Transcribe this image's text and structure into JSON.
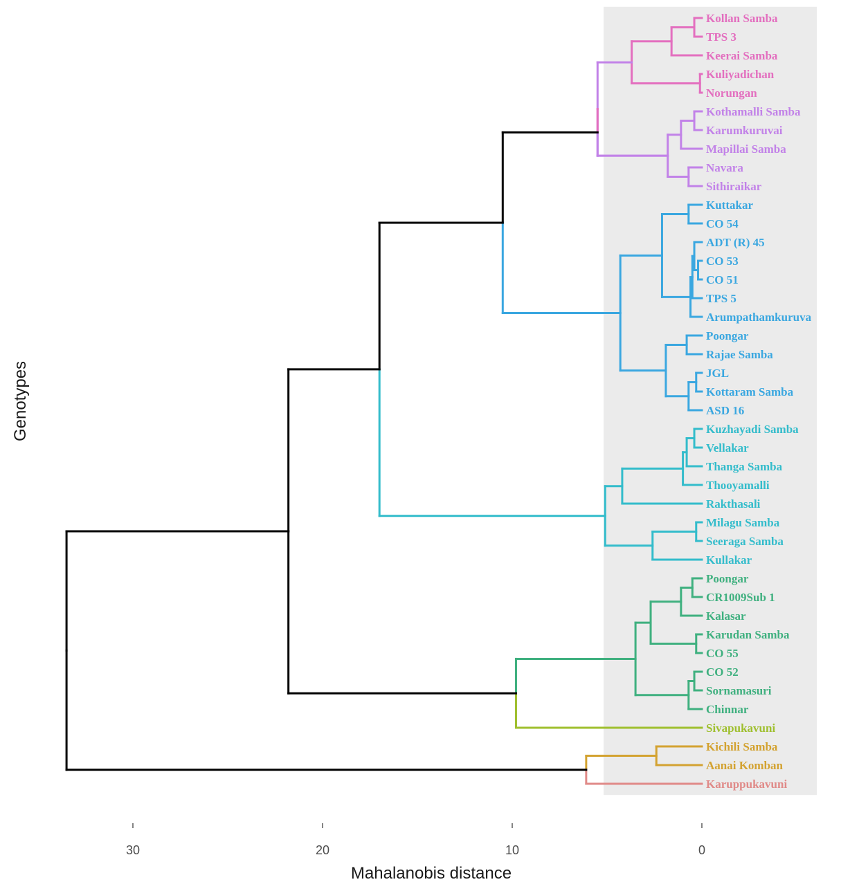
{
  "chart_data": {
    "type": "dendrogram",
    "xlabel": "Mahalanobis distance",
    "ylabel": "Genotypes",
    "x_ticks": [
      30,
      20,
      10,
      0
    ],
    "x_range": [
      33.5,
      -6
    ],
    "leaves": [
      {
        "label": "Kollan Samba",
        "cluster": 0
      },
      {
        "label": "TPS 3",
        "cluster": 0
      },
      {
        "label": "Keerai Samba",
        "cluster": 0
      },
      {
        "label": "Kuliyadichan",
        "cluster": 0
      },
      {
        "label": "Norungan",
        "cluster": 0
      },
      {
        "label": "Kothamalli Samba",
        "cluster": 1
      },
      {
        "label": "Karumkuruvai",
        "cluster": 1
      },
      {
        "label": "Mapillai Samba",
        "cluster": 1
      },
      {
        "label": "Navara",
        "cluster": 1
      },
      {
        "label": "Sithiraikar",
        "cluster": 1
      },
      {
        "label": "Kuttakar",
        "cluster": 2
      },
      {
        "label": "CO 54",
        "cluster": 2
      },
      {
        "label": "ADT (R) 45",
        "cluster": 2
      },
      {
        "label": "CO 53",
        "cluster": 2
      },
      {
        "label": "CO 51",
        "cluster": 2
      },
      {
        "label": "TPS 5",
        "cluster": 2
      },
      {
        "label": "Arumpathamkuruva",
        "cluster": 2
      },
      {
        "label": "Poongar",
        "cluster": 2
      },
      {
        "label": "Rajae Samba",
        "cluster": 2
      },
      {
        "label": "JGL",
        "cluster": 2
      },
      {
        "label": "Kottaram Samba",
        "cluster": 2
      },
      {
        "label": "ASD 16",
        "cluster": 2
      },
      {
        "label": "Kuzhayadi Samba",
        "cluster": 3
      },
      {
        "label": "Vellakar",
        "cluster": 3
      },
      {
        "label": "Thanga Samba",
        "cluster": 3
      },
      {
        "label": "Thooyamalli",
        "cluster": 3
      },
      {
        "label": "Rakthasali",
        "cluster": 3
      },
      {
        "label": "Milagu Samba",
        "cluster": 3
      },
      {
        "label": "Seeraga Samba",
        "cluster": 3
      },
      {
        "label": "Kullakar",
        "cluster": 3
      },
      {
        "label": "Poongar",
        "cluster": 4
      },
      {
        "label": "CR1009Sub 1",
        "cluster": 4
      },
      {
        "label": "Kalasar",
        "cluster": 4
      },
      {
        "label": "Karudan Samba",
        "cluster": 4
      },
      {
        "label": "CO 55",
        "cluster": 4
      },
      {
        "label": "CO 52",
        "cluster": 4
      },
      {
        "label": "Sornamasuri",
        "cluster": 4
      },
      {
        "label": "Chinnar",
        "cluster": 4
      },
      {
        "label": "Sivapukavuni",
        "cluster": 5
      },
      {
        "label": "Kichili Samba",
        "cluster": 6
      },
      {
        "label": "Aanai Komban",
        "cluster": 6
      },
      {
        "label": "Karuppukavuni",
        "cluster": 7
      }
    ],
    "clusters": [
      {
        "color": "#e36fbf"
      },
      {
        "color": "#c282e8"
      },
      {
        "color": "#3aa7e0"
      },
      {
        "color": "#33bccb"
      },
      {
        "color": "#3fb07f"
      },
      {
        "color": "#9fbf2e"
      },
      {
        "color": "#d3a230"
      },
      {
        "color": "#e08a88"
      }
    ],
    "cluster_tree": [
      {
        "l": "c0",
        "r": "c1",
        "h": 5.5,
        "c": 1
      },
      {
        "l": "n0",
        "r": "c2",
        "h": 10.5,
        "c": 2
      },
      {
        "l": "n1",
        "r": "c3",
        "h": 17,
        "c": 3
      },
      {
        "l": "c4",
        "r": "c5",
        "h": 9.8,
        "c": 5
      },
      {
        "l": "n2",
        "r": "n3",
        "h": 21.8,
        "c": -1
      },
      {
        "l": "c6",
        "r": "c7",
        "h": 6.1,
        "c": 7
      },
      {
        "l": "n4",
        "r": "n5",
        "h": 33.5,
        "c": -1
      }
    ],
    "leaf_tree": [
      {
        "l": 0,
        "r": 1,
        "h": 0.4
      },
      {
        "l": "n0",
        "r": 2,
        "h": 1.6
      },
      {
        "l": 3,
        "r": 4,
        "h": 0.1
      },
      {
        "l": "n1",
        "r": "n2",
        "h": 3.7
      },
      {
        "l": 5,
        "r": 6,
        "h": 0.4
      },
      {
        "l": "n4",
        "r": 7,
        "h": 1.1
      },
      {
        "l": 8,
        "r": 9,
        "h": 0.7
      },
      {
        "l": "n5",
        "r": "n6",
        "h": 1.8
      },
      {
        "l": "n3",
        "r": "n7",
        "h": 5.5
      },
      {
        "l": 10,
        "r": 11,
        "h": 0.7
      },
      {
        "l": 13,
        "r": 14,
        "h": 0.2
      },
      {
        "l": 12,
        "r": "n10",
        "h": 0.4
      },
      {
        "l": "n11",
        "r": 15,
        "h": 0.5
      },
      {
        "l": "n12",
        "r": 16,
        "h": 0.6
      },
      {
        "l": "n9",
        "r": "n13",
        "h": 2.1
      },
      {
        "l": 17,
        "r": 18,
        "h": 0.8
      },
      {
        "l": 19,
        "r": 20,
        "h": 0.3
      },
      {
        "l": "n16",
        "r": 21,
        "h": 0.7
      },
      {
        "l": "n15",
        "r": "n17",
        "h": 1.9
      },
      {
        "l": "n14",
        "r": "n18",
        "h": 4.3
      },
      {
        "l": 22,
        "r": 23,
        "h": 0.4
      },
      {
        "l": "n20",
        "r": 24,
        "h": 0.8
      },
      {
        "l": "n21",
        "r": 25,
        "h": 1.0
      },
      {
        "l": "n22",
        "r": 26,
        "h": 4.2
      },
      {
        "l": 27,
        "r": 28,
        "h": 0.3
      },
      {
        "l": "n24",
        "r": 29,
        "h": 2.6
      },
      {
        "l": "n23",
        "r": "n25",
        "h": 5.1
      },
      {
        "l": 30,
        "r": 31,
        "h": 0.5
      },
      {
        "l": "n27",
        "r": 32,
        "h": 1.1
      },
      {
        "l": 33,
        "r": 34,
        "h": 0.3
      },
      {
        "l": "n28",
        "r": "n29",
        "h": 2.7
      },
      {
        "l": 35,
        "r": 36,
        "h": 0.4
      },
      {
        "l": "n31",
        "r": 37,
        "h": 0.7
      },
      {
        "l": "n30",
        "r": "n32",
        "h": 3.5
      },
      {
        "l": 39,
        "r": 40,
        "h": 2.4
      }
    ]
  }
}
